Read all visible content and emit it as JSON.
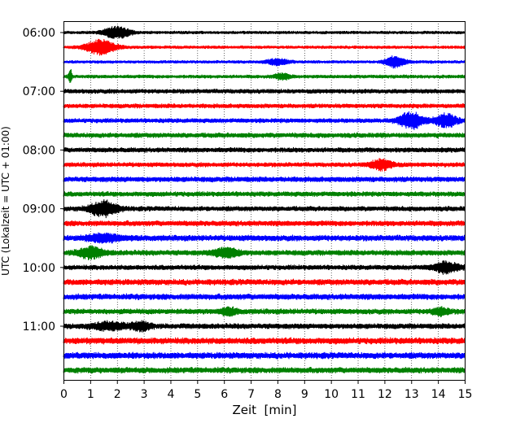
{
  "chart_data": {
    "type": "line",
    "subtype": "helicorder",
    "title": "",
    "xlabel": "Zeit  [min]",
    "ylabel": "UTC (Lokalzeit = UTC + 01:00)",
    "xlim": [
      0,
      15
    ],
    "x_ticks": [
      "0",
      "1",
      "2",
      "3",
      "4",
      "5",
      "6",
      "7",
      "8",
      "9",
      "10",
      "11",
      "12",
      "13",
      "14",
      "15"
    ],
    "y_tick_labels": [
      "06:00",
      "07:00",
      "08:00",
      "09:00",
      "10:00",
      "11:00"
    ],
    "grid": "vertical dotted at each minute",
    "colors": [
      "#000000",
      "#ff0000",
      "#0000ff",
      "#008000"
    ],
    "traces_per_hour": 4,
    "minutes_per_trace": 15,
    "traces": [
      {
        "start": "06:00",
        "amplitude": 0.7,
        "events": [
          {
            "t": 2.0,
            "amp": 2.6,
            "width": 0.5
          }
        ]
      },
      {
        "start": "06:15",
        "amplitude": 0.7,
        "events": [
          {
            "t": 1.4,
            "amp": 3.3,
            "width": 0.55
          }
        ]
      },
      {
        "start": "06:30",
        "amplitude": 0.7,
        "events": [
          {
            "t": 8.0,
            "amp": 1.4,
            "width": 0.4
          },
          {
            "t": 12.4,
            "amp": 2.6,
            "width": 0.35
          }
        ]
      },
      {
        "start": "06:45",
        "amplitude": 0.8,
        "events": [
          {
            "t": 0.25,
            "amp": 3.6,
            "width": 0.06
          },
          {
            "t": 8.2,
            "amp": 1.3,
            "width": 0.3
          }
        ]
      },
      {
        "start": "07:00",
        "amplitude": 1.0,
        "events": []
      },
      {
        "start": "07:15",
        "amplitude": 1.0,
        "events": []
      },
      {
        "start": "07:30",
        "amplitude": 1.0,
        "events": [
          {
            "t": 13.0,
            "amp": 3.6,
            "width": 0.45
          },
          {
            "t": 14.3,
            "amp": 2.8,
            "width": 0.4
          }
        ]
      },
      {
        "start": "07:45",
        "amplitude": 1.1,
        "events": []
      },
      {
        "start": "08:00",
        "amplitude": 1.1,
        "events": []
      },
      {
        "start": "08:15",
        "amplitude": 1.0,
        "events": [
          {
            "t": 11.9,
            "amp": 2.3,
            "width": 0.4
          }
        ]
      },
      {
        "start": "08:30",
        "amplitude": 1.2,
        "events": []
      },
      {
        "start": "08:45",
        "amplitude": 1.1,
        "events": []
      },
      {
        "start": "09:00",
        "amplitude": 1.1,
        "events": [
          {
            "t": 1.5,
            "amp": 3.3,
            "width": 0.5
          }
        ]
      },
      {
        "start": "09:15",
        "amplitude": 1.2,
        "events": []
      },
      {
        "start": "09:30",
        "amplitude": 1.3,
        "events": [
          {
            "t": 1.5,
            "amp": 1.5,
            "width": 0.6
          }
        ]
      },
      {
        "start": "09:45",
        "amplitude": 1.2,
        "events": [
          {
            "t": 1.0,
            "amp": 2.4,
            "width": 0.45
          },
          {
            "t": 6.1,
            "amp": 2.0,
            "width": 0.45
          }
        ]
      },
      {
        "start": "10:00",
        "amplitude": 1.1,
        "events": [
          {
            "t": 14.3,
            "amp": 2.3,
            "width": 0.45
          }
        ]
      },
      {
        "start": "10:15",
        "amplitude": 1.3,
        "events": []
      },
      {
        "start": "10:30",
        "amplitude": 1.3,
        "events": []
      },
      {
        "start": "10:45",
        "amplitude": 1.2,
        "events": [
          {
            "t": 6.2,
            "amp": 1.4,
            "width": 0.3
          },
          {
            "t": 14.1,
            "amp": 1.5,
            "width": 0.3
          }
        ]
      },
      {
        "start": "11:00",
        "amplitude": 1.2,
        "events": [
          {
            "t": 1.7,
            "amp": 1.5,
            "width": 0.6
          },
          {
            "t": 2.9,
            "amp": 1.8,
            "width": 0.35
          }
        ]
      },
      {
        "start": "11:15",
        "amplitude": 1.4,
        "events": []
      },
      {
        "start": "11:30",
        "amplitude": 1.4,
        "events": []
      },
      {
        "start": "11:45",
        "amplitude": 1.3,
        "events": []
      }
    ]
  }
}
